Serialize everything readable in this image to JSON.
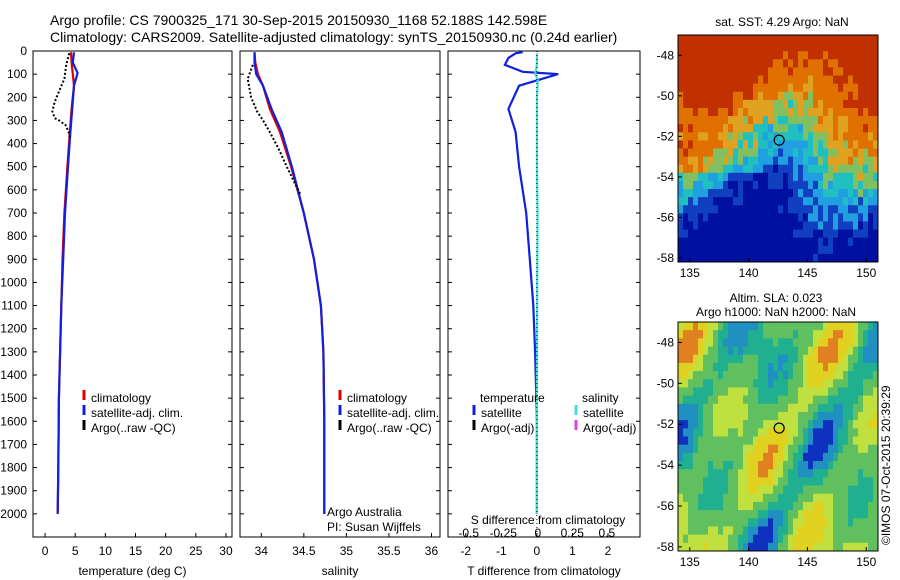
{
  "header": {
    "line1": "Argo profile: CS 7900325_171 30-Sep-2015 20150930_1168 52.188S 142.598E",
    "line2": "Climatology: CARS2009. Satellite-adjusted climatology: synTS_20150930.nc (0.24d earlier)"
  },
  "chart_data": [
    {
      "type": "line",
      "xlabel": "temperature (deg C)",
      "ylabel": "",
      "xlim": [
        -2,
        31
      ],
      "ylim": [
        0,
        2100
      ],
      "y_reversed": true,
      "xticks": [
        "0",
        "5",
        "10",
        "15",
        "20",
        "25",
        "30"
      ],
      "yticks": [
        "0",
        "100",
        "200",
        "300",
        "400",
        "500",
        "600",
        "700",
        "800",
        "900",
        "1000",
        "1100",
        "1200",
        "1300",
        "1400",
        "1500",
        "1600",
        "1700",
        "1800",
        "1900",
        "2000"
      ],
      "legend": [
        "climatology",
        "satellite-adj. clim.",
        "Argo(..raw -QC)"
      ],
      "series": [
        {
          "name": "climatology",
          "color": "#e00000",
          "x": [
            4.3,
            4.4,
            4.6,
            4.8,
            4.4,
            4.1,
            3.7,
            3.2,
            2.9,
            2.7,
            2.5,
            2.3,
            2.2,
            2.1
          ],
          "y": [
            5,
            50,
            100,
            150,
            250,
            350,
            500,
            700,
            900,
            1100,
            1300,
            1500,
            1800,
            2000
          ]
        },
        {
          "name": "satellite-adj. clim.",
          "color": "#1020e0",
          "x": [
            4.8,
            4.6,
            5.4,
            4.8,
            4.5,
            4.2,
            3.8,
            3.3,
            3.0,
            2.7,
            2.5,
            2.3,
            2.2,
            2.1
          ],
          "y": [
            5,
            50,
            95,
            150,
            250,
            350,
            500,
            700,
            900,
            1100,
            1300,
            1500,
            1800,
            2000
          ]
        },
        {
          "name": "Argo(..raw -QC)",
          "color": "#000000",
          "x": [
            4.0,
            3.5,
            3.2,
            2.4,
            1.6,
            1.2,
            1.6,
            2.3,
            3.4,
            3.9,
            4.2
          ],
          "y": [
            10,
            60,
            120,
            170,
            220,
            260,
            290,
            300,
            320,
            350,
            380
          ]
        }
      ]
    },
    {
      "type": "line",
      "xlabel": "salinity",
      "ylabel": "",
      "xlim": [
        33.75,
        36.1
      ],
      "ylim": [
        0,
        2100
      ],
      "y_reversed": true,
      "xticks": [
        "34",
        "34.5",
        "35",
        "35.5",
        "36"
      ],
      "legend": [
        "climatology",
        "satellite-adj. clim.",
        "Argo(..raw -QC)"
      ],
      "series": [
        {
          "name": "climatology",
          "color": "#e00000",
          "x": [
            33.92,
            33.93,
            33.96,
            34.02,
            34.1,
            34.22,
            34.35,
            34.5,
            34.62,
            34.7,
            34.73,
            34.74,
            34.74
          ],
          "y": [
            5,
            50,
            100,
            150,
            250,
            350,
            500,
            700,
            900,
            1100,
            1300,
            1600,
            2000
          ]
        },
        {
          "name": "satellite-adj. clim.",
          "color": "#1020e0",
          "x": [
            33.92,
            33.92,
            33.94,
            34.02,
            34.12,
            34.24,
            34.36,
            34.5,
            34.62,
            34.7,
            34.73,
            34.74,
            34.74
          ],
          "y": [
            5,
            50,
            100,
            150,
            250,
            350,
            500,
            700,
            900,
            1100,
            1300,
            1600,
            2000
          ]
        },
        {
          "name": "Argo(..raw -QC)",
          "color": "#000000",
          "x": [
            33.9,
            33.84,
            33.88,
            33.95,
            34.02,
            34.1,
            34.2,
            34.3,
            34.38,
            34.46
          ],
          "y": [
            60,
            120,
            200,
            260,
            300,
            350,
            420,
            500,
            560,
            620
          ]
        }
      ],
      "annotations": [
        "Argo Australia",
        "PI: Susan Wijffels"
      ]
    },
    {
      "type": "line",
      "xlabel": "T difference from climatology",
      "xlabel_top": "S difference from climatology",
      "xlim": [
        -2.5,
        2.9
      ],
      "xlim_top": [
        -0.65,
        0.74
      ],
      "ylim": [
        0,
        2100
      ],
      "y_reversed": true,
      "xticks": [
        "-2",
        "-1",
        "0",
        "1",
        "2"
      ],
      "xticks_top": [
        "-0.5",
        "-0.25",
        "0",
        "0.25",
        "0.5"
      ],
      "legend_groups": [
        {
          "title": "temperature",
          "items": [
            "satellite",
            "Argo(-adj)"
          ]
        },
        {
          "title": "salinity",
          "items": [
            "satellite",
            "Argo(-adj)"
          ]
        }
      ],
      "series": [
        {
          "name": "temperature satellite",
          "color": "#1020e0",
          "x": [
            -0.4,
            -0.6,
            -0.8,
            -0.9,
            -0.4,
            0.6,
            -0.5,
            -0.8,
            -0.6,
            -0.5,
            -0.3,
            -0.2,
            -0.1,
            -0.05,
            0,
            0
          ],
          "y": [
            5,
            10,
            30,
            60,
            90,
            100,
            150,
            250,
            350,
            500,
            700,
            900,
            1100,
            1300,
            1600,
            2000
          ]
        },
        {
          "name": "salinity satellite",
          "color": "#40e0e0",
          "x": [
            0.0,
            0.0,
            -0.05,
            0.02,
            0.02,
            0.0,
            0.0,
            0.0,
            0.02,
            0.01,
            0.0,
            0.0
          ],
          "y": [
            10,
            60,
            100,
            120,
            150,
            200,
            300,
            500,
            700,
            1000,
            1500,
            2000
          ]
        }
      ]
    },
    {
      "type": "heatmap",
      "title": "sat. SST: 4.29 Argo: NaN",
      "xticks": [
        "135",
        "140",
        "145",
        "150"
      ],
      "yticks": [
        "-48",
        "-50",
        "-52",
        "-54",
        "-56",
        "-58"
      ],
      "marker": [
        142.598,
        -52.188
      ]
    },
    {
      "type": "heatmap",
      "title": "Altim. SLA: 0.023",
      "subtitle": "Argo h1000: NaN h2000: NaN",
      "xticks": [
        "135",
        "140",
        "145",
        "150"
      ],
      "yticks": [
        "-48",
        "-50",
        "-52",
        "-54",
        "-56",
        "-58"
      ],
      "marker": [
        142.598,
        -52.188
      ]
    }
  ],
  "side_label": "©IMOS 07-Oct-2015 20:39:29",
  "colors": {
    "climatology": "#e00000",
    "satellite": "#1020e0",
    "argo": "#000000",
    "salinity_sat": "#40e0e0",
    "salinity_argo": "#e040e0"
  }
}
